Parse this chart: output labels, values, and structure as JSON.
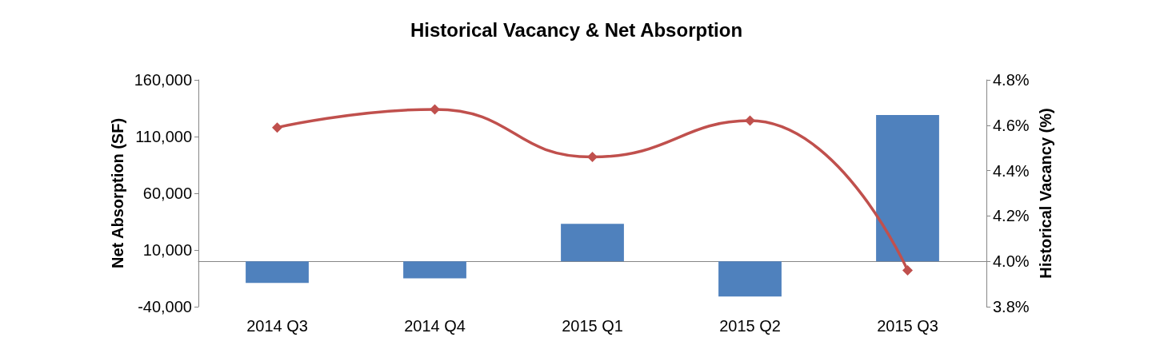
{
  "chart_data": {
    "type": "bar",
    "title": "Historical Vacancy & Net Absorption",
    "ylabel": "Net Absorption (SF)",
    "y2label": "Historical Vacancy (%)",
    "categories": [
      "2014 Q3",
      "2014 Q4",
      "2015 Q1",
      "2015 Q2",
      "2015 Q3"
    ],
    "series": [
      {
        "color": "#4f81bd",
        "values": [
          -19000,
          -15000,
          33000,
          -31000,
          129000
        ]
      },
      {
        "type": "line",
        "axis": "y2",
        "color": "#c0504d",
        "values": [
          4.59,
          4.67,
          4.46,
          4.62,
          3.96
        ]
      }
    ],
    "ylim": [
      -40000,
      160000
    ],
    "yticks": [
      {
        "value": -40000,
        "label": "-40,000"
      },
      {
        "value": 10000,
        "label": "10,000"
      },
      {
        "value": 60000,
        "label": "60,000"
      },
      {
        "value": 110000,
        "label": "110,000"
      },
      {
        "value": 160000,
        "label": "160,000"
      }
    ],
    "y2lim": [
      3.8,
      4.8
    ],
    "y2ticks": [
      {
        "value": 3.8,
        "label": "3.8%"
      },
      {
        "value": 4.0,
        "label": "4.0%"
      },
      {
        "value": 4.2,
        "label": "4.2%"
      },
      {
        "value": 4.4,
        "label": "4.4%"
      },
      {
        "value": 4.6,
        "label": "4.6%"
      },
      {
        "value": 4.8,
        "label": "4.8%"
      }
    ],
    "marker": "diamond"
  }
}
